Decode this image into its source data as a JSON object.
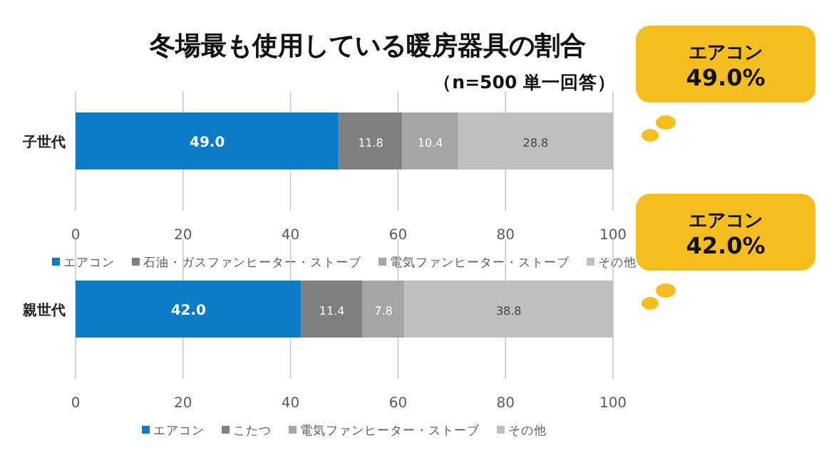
{
  "chart_data": [
    {
      "type": "bar",
      "orientation": "horizontal",
      "stacked": true,
      "title": "冬場最も使用している暖房器具の割合",
      "subtitle": "（n=500 単一回答）",
      "categories": [
        "子世代"
      ],
      "series": [
        {
          "name": "エアコン",
          "color": "#0a7bc4",
          "values": [
            49.0
          ],
          "value_labels": [
            "49.0"
          ]
        },
        {
          "name": "石油・ガスファンヒーター・ストーブ",
          "color": "#7f7f7f",
          "values": [
            11.8
          ],
          "value_labels": [
            "11.8"
          ]
        },
        {
          "name": "電気ファンヒーター・ストーブ",
          "color": "#a5a5a5",
          "values": [
            10.4
          ],
          "value_labels": [
            "10.4"
          ]
        },
        {
          "name": "その他",
          "color": "#bfbfbf",
          "values": [
            28.8
          ],
          "value_labels": [
            "28.8"
          ]
        }
      ],
      "xlim": [
        0,
        100
      ],
      "xticks": [
        0,
        20,
        40,
        60,
        80,
        100
      ],
      "grid": "x",
      "legend": "bottom",
      "annotations": [
        "エアコン 49.0%"
      ]
    },
    {
      "type": "bar",
      "orientation": "horizontal",
      "stacked": true,
      "categories": [
        "親世代"
      ],
      "series": [
        {
          "name": "エアコン",
          "color": "#0a7bc4",
          "values": [
            42.0
          ],
          "value_labels": [
            "42.0"
          ]
        },
        {
          "name": "こたつ",
          "color": "#7f7f7f",
          "values": [
            11.4
          ],
          "value_labels": [
            "11.4"
          ]
        },
        {
          "name": "電気ファンヒーター・ストーブ",
          "color": "#a5a5a5",
          "values": [
            7.8
          ],
          "value_labels": [
            "7.8"
          ]
        },
        {
          "name": "その他",
          "color": "#bfbfbf",
          "values": [
            38.8
          ],
          "value_labels": [
            "38.8"
          ]
        }
      ],
      "xlim": [
        0,
        100
      ],
      "xticks": [
        0,
        20,
        40,
        60,
        80,
        100
      ],
      "grid": "x",
      "legend": "bottom",
      "annotations": [
        "エアコン 42.0%"
      ]
    }
  ]
}
